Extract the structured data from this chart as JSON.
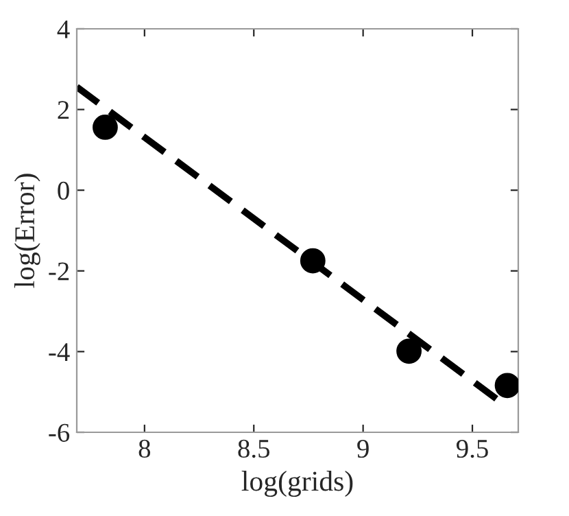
{
  "chart_data": {
    "type": "scatter",
    "xlabel": "log(grids)",
    "ylabel": "log(Error)",
    "xlim": [
      7.69,
      9.71
    ],
    "ylim": [
      -6,
      4
    ],
    "xticks": [
      8,
      8.5,
      9,
      9.5
    ],
    "yticks": [
      -6,
      -4,
      -2,
      0,
      2,
      4
    ],
    "grid": false,
    "series": [
      {
        "color": "#000000",
        "marker": "circle",
        "x": [
          7.82,
          8.77,
          9.21,
          9.66
        ],
        "values": [
          1.56,
          -1.75,
          -3.99,
          -4.84
        ]
      },
      {
        "type": "line",
        "color": "#000000",
        "marker": "none",
        "line_style": "dashed",
        "x": [
          7.69,
          9.62
        ],
        "values": [
          2.56,
          -5.21
        ]
      }
    ]
  }
}
